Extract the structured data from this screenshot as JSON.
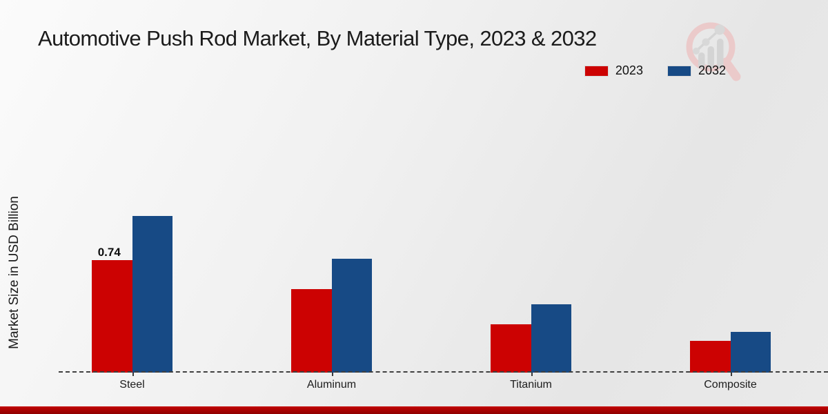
{
  "chart_data": {
    "type": "bar",
    "title": "Automotive Push Rod Market, By Material Type, 2023 & 2032",
    "ylabel": "Market Size in USD Billion",
    "xlabel": "",
    "categories": [
      "Steel",
      "Aluminum",
      "Titanium",
      "Composite"
    ],
    "series": [
      {
        "name": "2023",
        "color": "#cc0202",
        "values": [
          0.74,
          0.55,
          0.32,
          0.21
        ]
      },
      {
        "name": "2032",
        "color": "#174a85",
        "values": [
          1.03,
          0.75,
          0.45,
          0.27
        ]
      }
    ],
    "annotations": [
      {
        "category": "Steel",
        "series": "2023",
        "text": "0.74"
      }
    ],
    "legend": {
      "position": "top-right",
      "entries": [
        {
          "label": "2023",
          "color": "#cc0202"
        },
        {
          "label": "2032",
          "color": "#174a85"
        }
      ]
    },
    "ylim": [
      0,
      1.25
    ],
    "grid": false,
    "baseline_style": "dashed"
  },
  "branding": {
    "watermark_icon": "magnifier-bar-chart-logo",
    "footer_color": "#b30303"
  }
}
